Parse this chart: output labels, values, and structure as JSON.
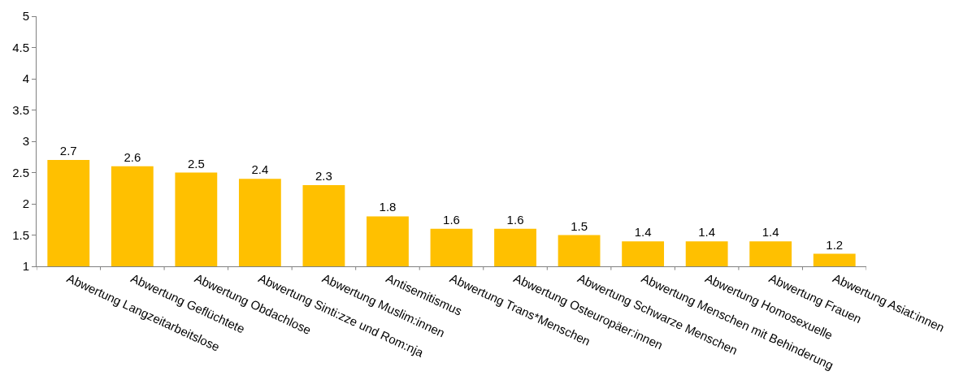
{
  "chart_data": {
    "type": "bar",
    "categories": [
      "Abwertung Langzeitarbeitslose",
      "Abwertung Geflüchtete",
      "Abwertung Obdachlose",
      "Abwertung Sinti:zze und Rom:nja",
      "Abwertung Muslim:innen",
      "Antisemitismus",
      "Abwertung Trans*Menschen",
      "Abwertung Osteuropäer:innen",
      "Abwertung Schwarze Menschen",
      "Abwertung Menschen mit Behinderung",
      "Abwertung Homosexuelle",
      "Abwertung Frauen",
      "Abwertung Asiat:innen"
    ],
    "values": [
      2.7,
      2.6,
      2.5,
      2.4,
      2.3,
      1.8,
      1.6,
      1.6,
      1.5,
      1.4,
      1.4,
      1.4,
      1.2
    ],
    "color": "#ffc000",
    "ylim": [
      1,
      5
    ],
    "yticks": [
      1,
      1.5,
      2,
      2.5,
      3,
      3.5,
      4,
      4.5,
      5
    ],
    "data_labels": true
  }
}
